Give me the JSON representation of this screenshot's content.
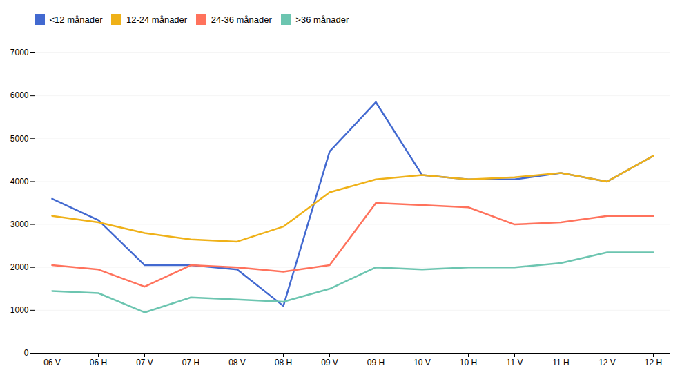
{
  "chart_data": {
    "type": "line",
    "categories": [
      "06 V",
      "06 H",
      "07 V",
      "07 H",
      "08 V",
      "08 H",
      "09 V",
      "09 H",
      "10 V",
      "10 H",
      "11 V",
      "11 H",
      "12 V",
      "12 H"
    ],
    "series": [
      {
        "name": "<12 månader",
        "values": [
          3600,
          3100,
          2050,
          2050,
          1950,
          1100,
          4700,
          5850,
          4150,
          4050,
          4050,
          4200,
          4000,
          4600
        ]
      },
      {
        "name": "12-24 månader",
        "values": [
          3200,
          3050,
          2800,
          2650,
          2600,
          2950,
          3750,
          4050,
          4150,
          4050,
          4100,
          4200,
          4000,
          4600
        ]
      },
      {
        "name": "24-36 månader",
        "values": [
          2050,
          1950,
          1550,
          2050,
          2000,
          1900,
          2050,
          3500,
          3450,
          3400,
          3000,
          3050,
          3200,
          3200
        ]
      },
      {
        "name": ">36 månader",
        "values": [
          1450,
          1400,
          950,
          1300,
          1250,
          1200,
          1500,
          2000,
          1950,
          2000,
          2000,
          2100,
          2350,
          2350
        ]
      }
    ],
    "ylim": [
      0,
      7000
    ],
    "yticks": [
      0,
      1000,
      2000,
      3000,
      4000,
      5000,
      6000,
      7000
    ],
    "grid": true,
    "legend": "top"
  }
}
